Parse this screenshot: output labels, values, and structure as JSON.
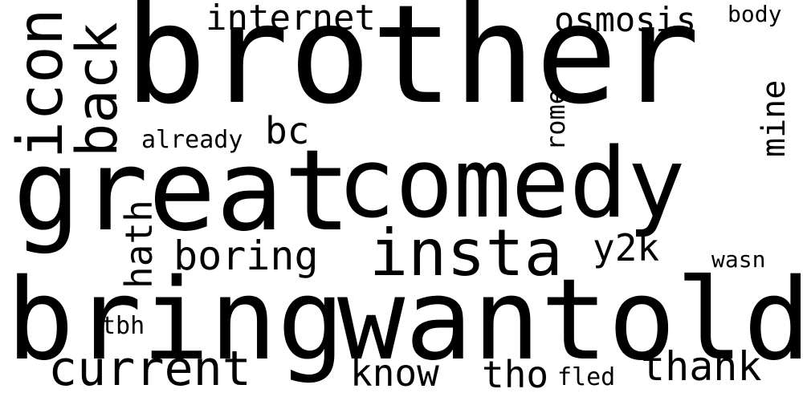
{
  "words": {
    "brother": "brother",
    "great": "great",
    "comedy": "comedy",
    "bring": "bring",
    "wantold": "wantold",
    "insta": "insta",
    "internet": "internet",
    "osmosis": "osmosis",
    "body": "body",
    "bc": "bc",
    "already": "already",
    "boring": "boring",
    "y2k": "y2k",
    "wasn": "wasn",
    "current": "current",
    "tbh": "tbh",
    "know": "know",
    "tho": "tho",
    "fled": "fled",
    "thank": "thank",
    "icon": "icon",
    "back": "back",
    "hath": "hath",
    "rome": "rome",
    "mine": "mine"
  },
  "colors": {
    "background": "#ffffff",
    "text": "#000000"
  }
}
